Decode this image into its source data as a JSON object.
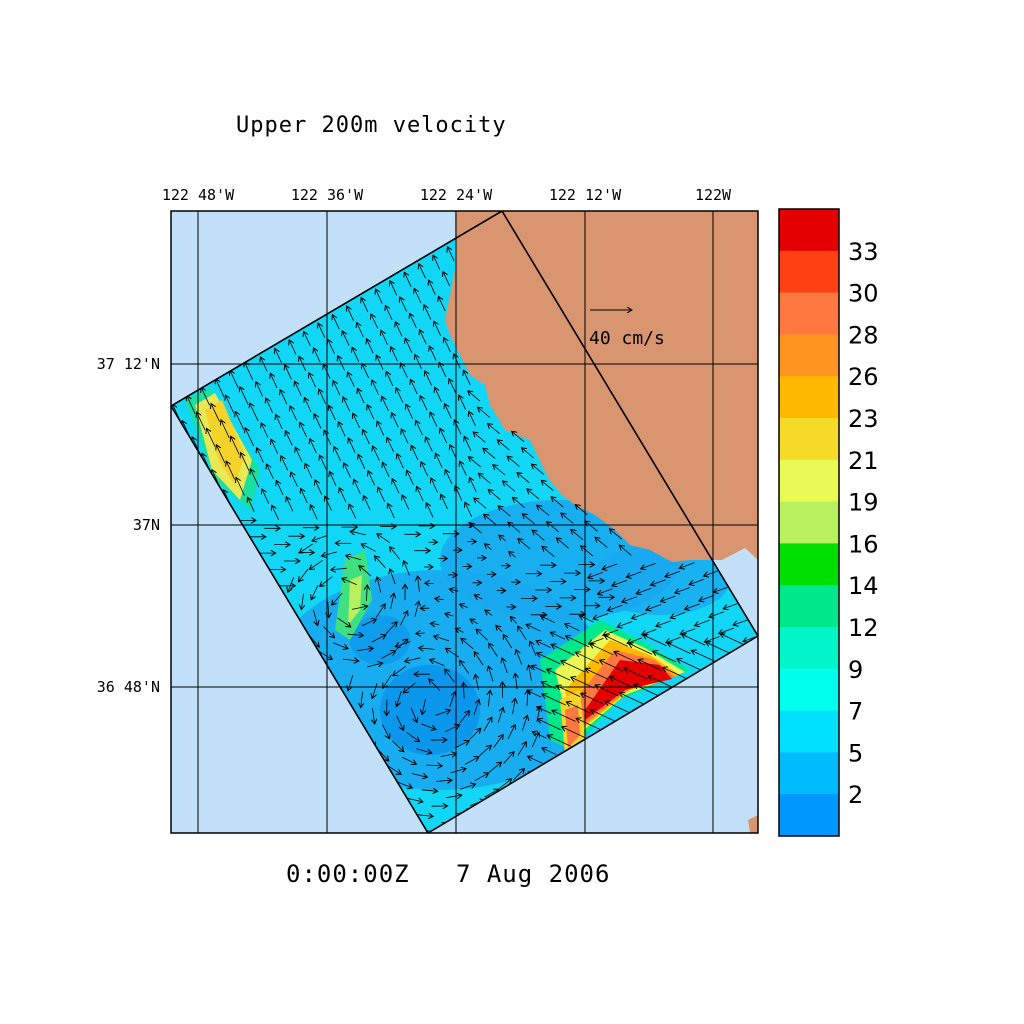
{
  "title": "Upper 200m velocity",
  "timestamp": "0:00:00Z   7 Aug 2006",
  "lon_ticks": [
    "122 48'W",
    "122 36'W",
    "122 24'W",
    "122 12'W",
    "122W"
  ],
  "lat_ticks": [
    "37 12'N",
    "37N",
    "36 48'N"
  ],
  "reference_vector": {
    "label": "40 cm/s",
    "magnitude": 40,
    "units": "cm/s"
  },
  "colorbar": {
    "label_values": [
      "33",
      "30",
      "28",
      "26",
      "23",
      "21",
      "19",
      "16",
      "14",
      "12",
      "9",
      "7",
      "5",
      "2"
    ],
    "colors": [
      "#e50000",
      "#ff4010",
      "#ff7840",
      "#ff9422",
      "#ffba00",
      "#f5db28",
      "#e9fa55",
      "#b8f060",
      "#00e000",
      "#00e88c",
      "#00f5c8",
      "#00ffec",
      "#00e0ff",
      "#00bcff",
      "#0098ff"
    ]
  },
  "colors": {
    "ocean": "#c2e0fa",
    "land": "#d99470",
    "domain_field": "#12d6f5",
    "low_speed": "#1aa8f0",
    "high_speed": "#e50000"
  }
}
